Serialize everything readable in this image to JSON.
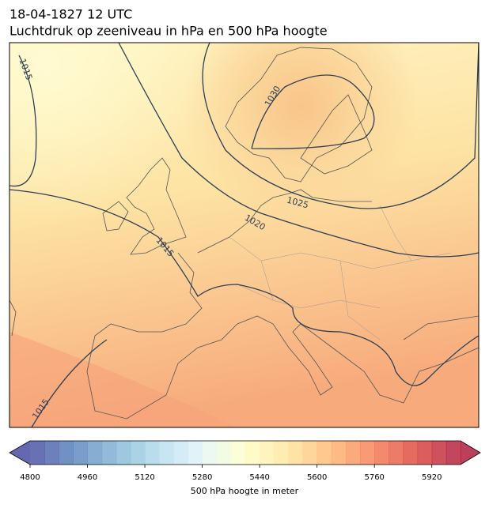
{
  "header": {
    "title": "18-04-1827 12 UTC",
    "subtitle": "Luchtdruk op zeeniveau in hPa en 500 hPa hoogte"
  },
  "map": {
    "contour_labels": [
      "1015",
      "1030",
      "1025",
      "1020",
      "1015",
      "1015"
    ]
  },
  "colorbar": {
    "label": "500 hPa hoogte in meter",
    "lim": [
      4800,
      6000
    ],
    "ticks": [
      4800,
      4960,
      5120,
      5280,
      5440,
      5600,
      5760,
      5920
    ],
    "colormap": [
      "#313695",
      "#4575b4",
      "#74add1",
      "#abd9e9",
      "#e0f3f8",
      "#ffffbf",
      "#fee090",
      "#fdae61",
      "#f46d43",
      "#d73027",
      "#a50026"
    ]
  }
}
